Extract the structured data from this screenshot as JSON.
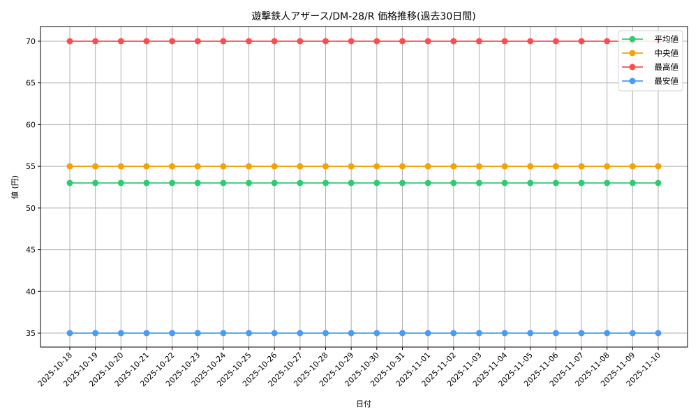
{
  "chart_data": {
    "type": "line",
    "title": "遊撃鉄人アザース/DM-28/R 価格推移(過去30日間)",
    "xlabel": "日付",
    "ylabel": "値 (円)",
    "ylim": [
      33.3,
      71.7
    ],
    "yticks": [
      35,
      40,
      45,
      50,
      55,
      60,
      65,
      70
    ],
    "grid": true,
    "legend_position": "upper right",
    "categories": [
      "2025-10-18",
      "2025-10-19",
      "2025-10-20",
      "2025-10-21",
      "2025-10-22",
      "2025-10-23",
      "2025-10-24",
      "2025-10-25",
      "2025-10-26",
      "2025-10-27",
      "2025-10-28",
      "2025-10-29",
      "2025-10-30",
      "2025-10-31",
      "2025-11-01",
      "2025-11-02",
      "2025-11-03",
      "2025-11-04",
      "2025-11-05",
      "2025-11-06",
      "2025-11-07",
      "2025-11-08",
      "2025-11-09",
      "2025-11-10"
    ],
    "series": [
      {
        "name": "平均値",
        "color": "#2ecc71",
        "values": [
          53,
          53,
          53,
          53,
          53,
          53,
          53,
          53,
          53,
          53,
          53,
          53,
          53,
          53,
          53,
          53,
          53,
          53,
          53,
          53,
          53,
          53,
          53,
          53
        ]
      },
      {
        "name": "中央値",
        "color": "#f5a20a",
        "values": [
          55,
          55,
          55,
          55,
          55,
          55,
          55,
          55,
          55,
          55,
          55,
          55,
          55,
          55,
          55,
          55,
          55,
          55,
          55,
          55,
          55,
          55,
          55,
          55
        ]
      },
      {
        "name": "最高値",
        "color": "#ff4d4d",
        "values": [
          70,
          70,
          70,
          70,
          70,
          70,
          70,
          70,
          70,
          70,
          70,
          70,
          70,
          70,
          70,
          70,
          70,
          70,
          70,
          70,
          70,
          70,
          70,
          70
        ]
      },
      {
        "name": "最安値",
        "color": "#4a9bf5",
        "values": [
          35,
          35,
          35,
          35,
          35,
          35,
          35,
          35,
          35,
          35,
          35,
          35,
          35,
          35,
          35,
          35,
          35,
          35,
          35,
          35,
          35,
          35,
          35,
          35
        ]
      }
    ]
  }
}
